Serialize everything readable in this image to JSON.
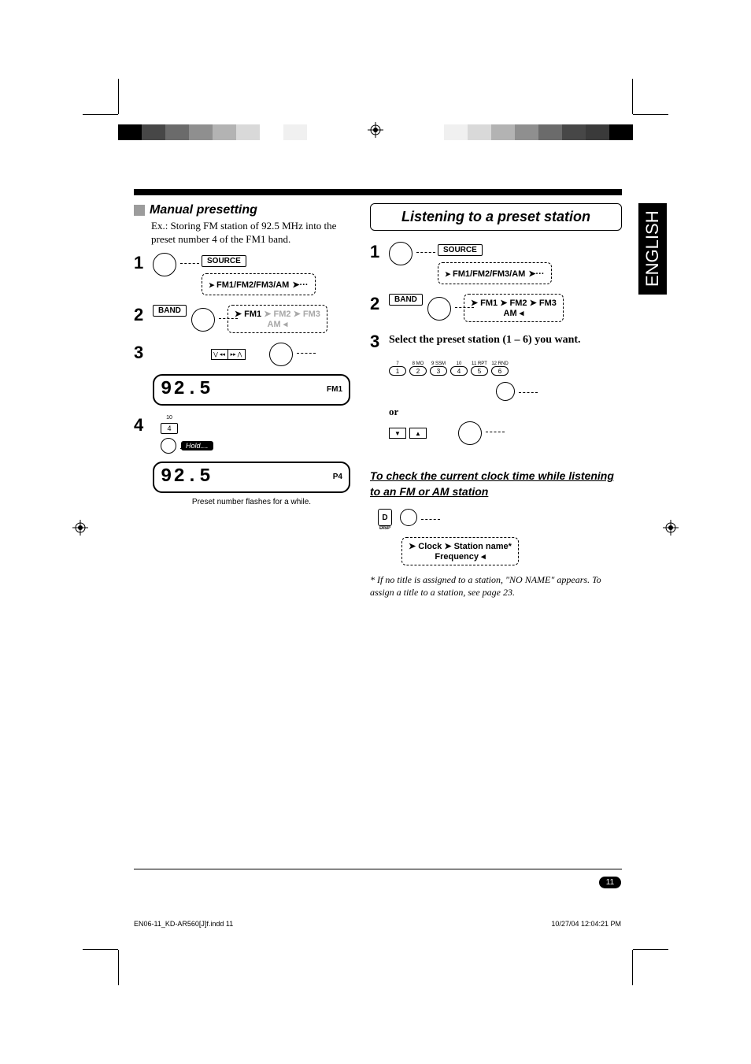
{
  "colorbar_left": [
    "#000000",
    "#474747",
    "#6b6b6b",
    "#8f8f8f",
    "#b3b3b3",
    "#d9d9d9",
    "#ffffff",
    "#f0f0f0"
  ],
  "colorbar_right": [
    "#f0f0f0",
    "#d9d9d9",
    "#b3b3b3",
    "#8f8f8f",
    "#6b6b6b",
    "#474747",
    "#3a3a3a",
    "#000000"
  ],
  "tab": "ENGLISH",
  "left": {
    "heading": "Manual presetting",
    "example": "Ex.: Storing FM station of 92.5 MHz into the preset number 4 of the FM1 band.",
    "steps": {
      "s1_label": "SOURCE",
      "s1_flow": "FM1/FM2/FM3/AM",
      "s2_label": "BAND",
      "s2_flow_a": "FM1",
      "s2_flow_b": "FM2",
      "s2_flow_c": "FM3",
      "s2_flow_d": "AM",
      "s3_rocker_l": "⋁ ◂◂",
      "s3_rocker_r": "▸▸ ⋀",
      "s3_freq": "92.5",
      "s3_band": "FM1",
      "s4_small_num": "10",
      "s4_btn": "4",
      "s4_hold": "Hold....",
      "s4_freq": "92.5",
      "s4_preset_disp": "P4"
    },
    "caption": "Preset number flashes for a while."
  },
  "right": {
    "listen_heading": "Listening to a preset station",
    "s1_label": "SOURCE",
    "s1_flow": "FM1/FM2/FM3/AM",
    "s2_label": "BAND",
    "s2_flow_a": "FM1",
    "s2_flow_b": "FM2",
    "s2_flow_c": "FM3",
    "s2_flow_d": "AM",
    "s3_text": "Select the preset station (1 – 6) you want.",
    "preset_top_labels": [
      "7",
      "8 MO",
      "9 SSM",
      "10",
      "11 RPT",
      "12 RND"
    ],
    "preset_numbers": [
      "1",
      "2",
      "3",
      "4",
      "5",
      "6"
    ],
    "or": "or",
    "tri_down": "▼",
    "tri_up": "▲",
    "check_heading": "To check the current clock time while listening to an FM or AM station",
    "disp_label_top": "D",
    "disp_label_bottom": "DISP",
    "flow_clock": "Clock",
    "flow_station": "Station name*",
    "flow_freq": "Frequency",
    "footnote": "*  If no title is assigned to a station, \"NO NAME\" appears. To assign a title to a station, see page 23."
  },
  "page_number": "11",
  "footer_left": "EN06-11_KD-AR560[J]f.indd   11",
  "footer_right": "10/27/04   12:04:21 PM"
}
